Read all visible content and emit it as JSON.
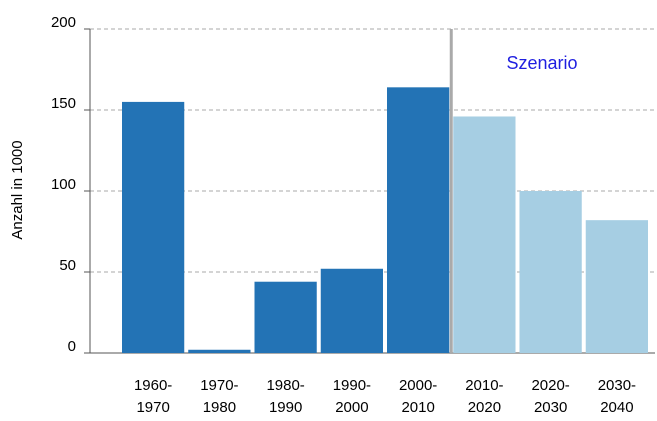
{
  "chart_data": {
    "type": "bar",
    "y_label": "Anzahl in 1000",
    "categories": [
      "1960-\n1970",
      "1970-\n1980",
      "1980-\n1990",
      "1990-\n2000",
      "2000-\n2010",
      "2010-\n2020",
      "2020-\n2030",
      "2030-\n2040"
    ],
    "values": [
      155,
      2,
      44,
      52,
      164,
      146,
      100,
      82
    ],
    "colors": [
      "#2373b5",
      "#2373b5",
      "#2373b5",
      "#2373b5",
      "#2373b5",
      "#a6cee3",
      "#a6cee3",
      "#a6cee3"
    ],
    "annotation": {
      "text": "Szenario",
      "color": "#1f1fe0"
    },
    "ylim": [
      0,
      200
    ],
    "yticks": [
      0,
      50,
      100,
      150,
      200
    ],
    "grid": true
  }
}
